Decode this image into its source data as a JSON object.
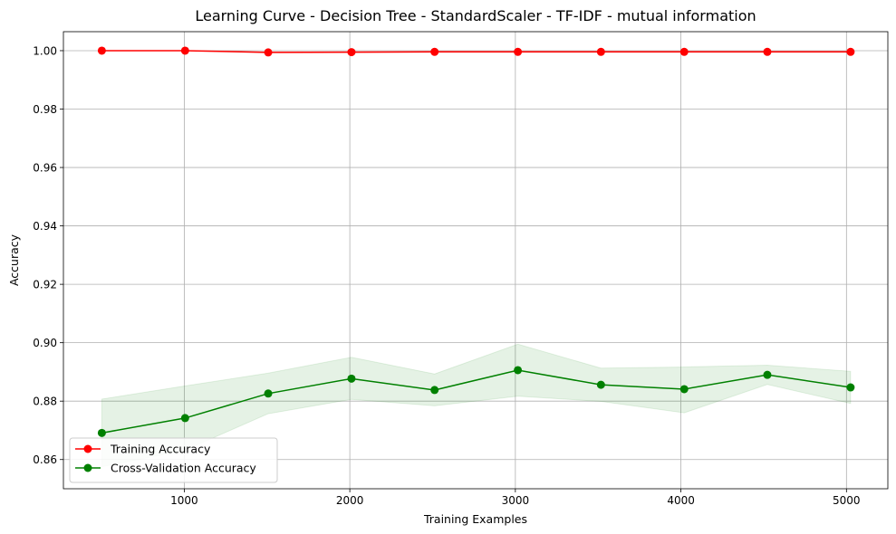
{
  "chart_data": {
    "type": "line",
    "title": "Learning Curve - Decision Tree - StandardScaler - TF-IDF - mutual information",
    "xlabel": "Training Examples",
    "ylabel": "Accuracy",
    "xlim": [
      270,
      5250
    ],
    "ylim": [
      0.85,
      1.0065
    ],
    "xticks": [
      1000,
      2000,
      3000,
      4000,
      5000
    ],
    "xtick_labels": [
      "1000",
      "2000",
      "3000",
      "4000",
      "5000"
    ],
    "yticks": [
      0.86,
      0.88,
      0.9,
      0.92,
      0.94,
      0.96,
      0.98,
      1.0
    ],
    "ytick_labels": [
      "0.86",
      "0.88",
      "0.90",
      "0.92",
      "0.94",
      "0.96",
      "0.98",
      "1.00"
    ],
    "grid": true,
    "legend_position": "lower-left",
    "x": [
      502,
      1005,
      1507,
      2010,
      2512,
      3015,
      3517,
      4020,
      4522,
      5025
    ],
    "series": [
      {
        "name": "Training Accuracy",
        "color": "#ff0000",
        "marker": "circle",
        "values": [
          1.0,
          1.0,
          0.9994,
          0.9995,
          0.9996,
          0.9996,
          0.9996,
          0.9996,
          0.9996,
          0.9996
        ],
        "band_lower": [
          1.0,
          1.0,
          0.9992,
          0.9993,
          0.9994,
          0.9994,
          0.9994,
          0.9994,
          0.9994,
          0.9994
        ],
        "band_upper": [
          1.0,
          1.0,
          0.9996,
          0.9997,
          0.9998,
          0.9998,
          0.9998,
          0.9998,
          0.9998,
          0.9998
        ]
      },
      {
        "name": "Cross-Validation Accuracy",
        "color": "#008000",
        "marker": "circle",
        "values": [
          0.8691,
          0.8742,
          0.8826,
          0.8877,
          0.8838,
          0.8906,
          0.8856,
          0.8841,
          0.889,
          0.8847
        ],
        "band_lower": [
          0.8575,
          0.8632,
          0.8757,
          0.8806,
          0.8784,
          0.8817,
          0.8799,
          0.876,
          0.8857,
          0.8792
        ],
        "band_upper": [
          0.8807,
          0.8852,
          0.8896,
          0.895,
          0.8893,
          0.8995,
          0.8913,
          0.8917,
          0.8923,
          0.8902
        ]
      }
    ]
  }
}
